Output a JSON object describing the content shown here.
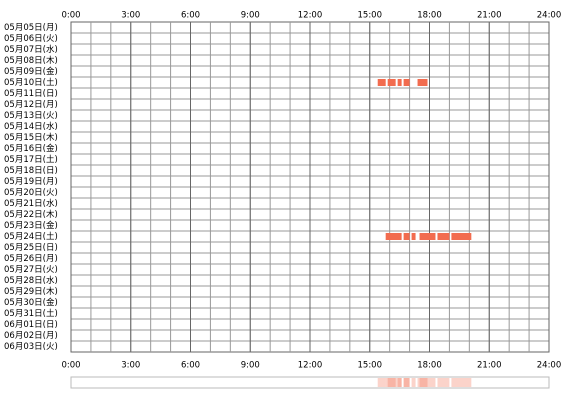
{
  "chart_data": {
    "type": "timeline",
    "categories": [
      "05月05日(月)",
      "05月06日(火)",
      "05月07日(水)",
      "05月08日(木)",
      "05月09日(金)",
      "05月10日(土)",
      "05月11日(日)",
      "05月12日(月)",
      "05月13日(火)",
      "05月14日(水)",
      "05月15日(木)",
      "05月16日(金)",
      "05月17日(土)",
      "05月18日(日)",
      "05月19日(月)",
      "05月20日(火)",
      "05月21日(水)",
      "05月22日(木)",
      "05月23日(金)",
      "05月24日(土)",
      "05月25日(日)",
      "05月26日(月)",
      "05月27日(火)",
      "05月28日(水)",
      "05月29日(木)",
      "05月30日(金)",
      "05月31日(土)",
      "06月01日(日)",
      "06月02日(月)",
      "06月03日(火)"
    ],
    "values": [
      [],
      [],
      [],
      [],
      [],
      [
        [
          15.4,
          15.8
        ],
        [
          15.9,
          16.3
        ],
        [
          16.4,
          16.6
        ],
        [
          16.7,
          17.0
        ],
        [
          17.4,
          17.9
        ]
      ],
      [],
      [],
      [],
      [],
      [],
      [],
      [],
      [],
      [],
      [],
      [],
      [],
      [],
      [
        [
          15.8,
          16.6
        ],
        [
          16.7,
          17.0
        ],
        [
          17.1,
          17.3
        ],
        [
          17.5,
          18.3
        ],
        [
          18.4,
          19.0
        ],
        [
          19.1,
          20.1
        ]
      ],
      [],
      [],
      [],
      [],
      [],
      [],
      [],
      [],
      [],
      []
    ],
    "color": "#f26c4f",
    "xlim": [
      0,
      24
    ],
    "xticks": [
      {
        "value": 0,
        "label": "0:00"
      },
      {
        "value": 3,
        "label": "3:00"
      },
      {
        "value": 6,
        "label": "6:00"
      },
      {
        "value": 9,
        "label": "9:00"
      },
      {
        "value": 12,
        "label": "12:00"
      },
      {
        "value": 15,
        "label": "15:00"
      },
      {
        "value": 18,
        "label": "18:00"
      },
      {
        "value": 21,
        "label": "21:00"
      },
      {
        "value": 24,
        "label": "24:00"
      }
    ],
    "grid": true
  }
}
